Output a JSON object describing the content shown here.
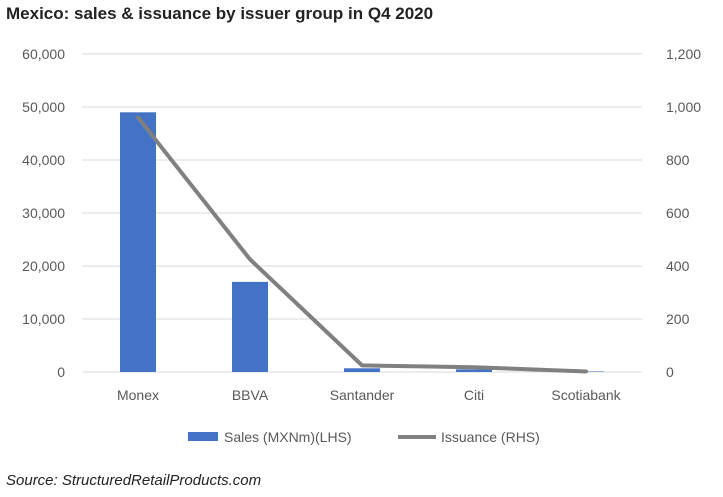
{
  "title": "Mexico: sales & issuance by issuer group in Q4 2020",
  "source": "Source: StructuredRetailProducts.com",
  "colors": {
    "bar": "#4472C4",
    "line": "#808080",
    "axis": "#D9D9D9",
    "text": "#595959"
  },
  "chart_data": {
    "type": "bar",
    "title": "Mexico: sales & issuance by issuer group in Q4 2020",
    "categories": [
      "Monex",
      "BBVA",
      "Santander",
      "Citi",
      "Scotiabank"
    ],
    "series": [
      {
        "name": "Sales (MXNm)(LHS)",
        "type": "bar",
        "axis": "left",
        "values": [
          49000,
          17000,
          700,
          500,
          100
        ]
      },
      {
        "name": "Issuance (RHS)",
        "type": "line",
        "axis": "right",
        "values": [
          960,
          425,
          25,
          18,
          2
        ]
      }
    ],
    "y_left": {
      "ylim": [
        0,
        60000
      ],
      "ticks": [
        "0",
        "10,000",
        "20,000",
        "30,000",
        "40,000",
        "50,000",
        "60,000"
      ]
    },
    "y_right": {
      "ylim": [
        0,
        1200
      ],
      "ticks": [
        "0",
        "200",
        "400",
        "600",
        "800",
        "1,000",
        "1,200"
      ]
    },
    "grid": "horizontal",
    "legend": "bottom-center"
  }
}
